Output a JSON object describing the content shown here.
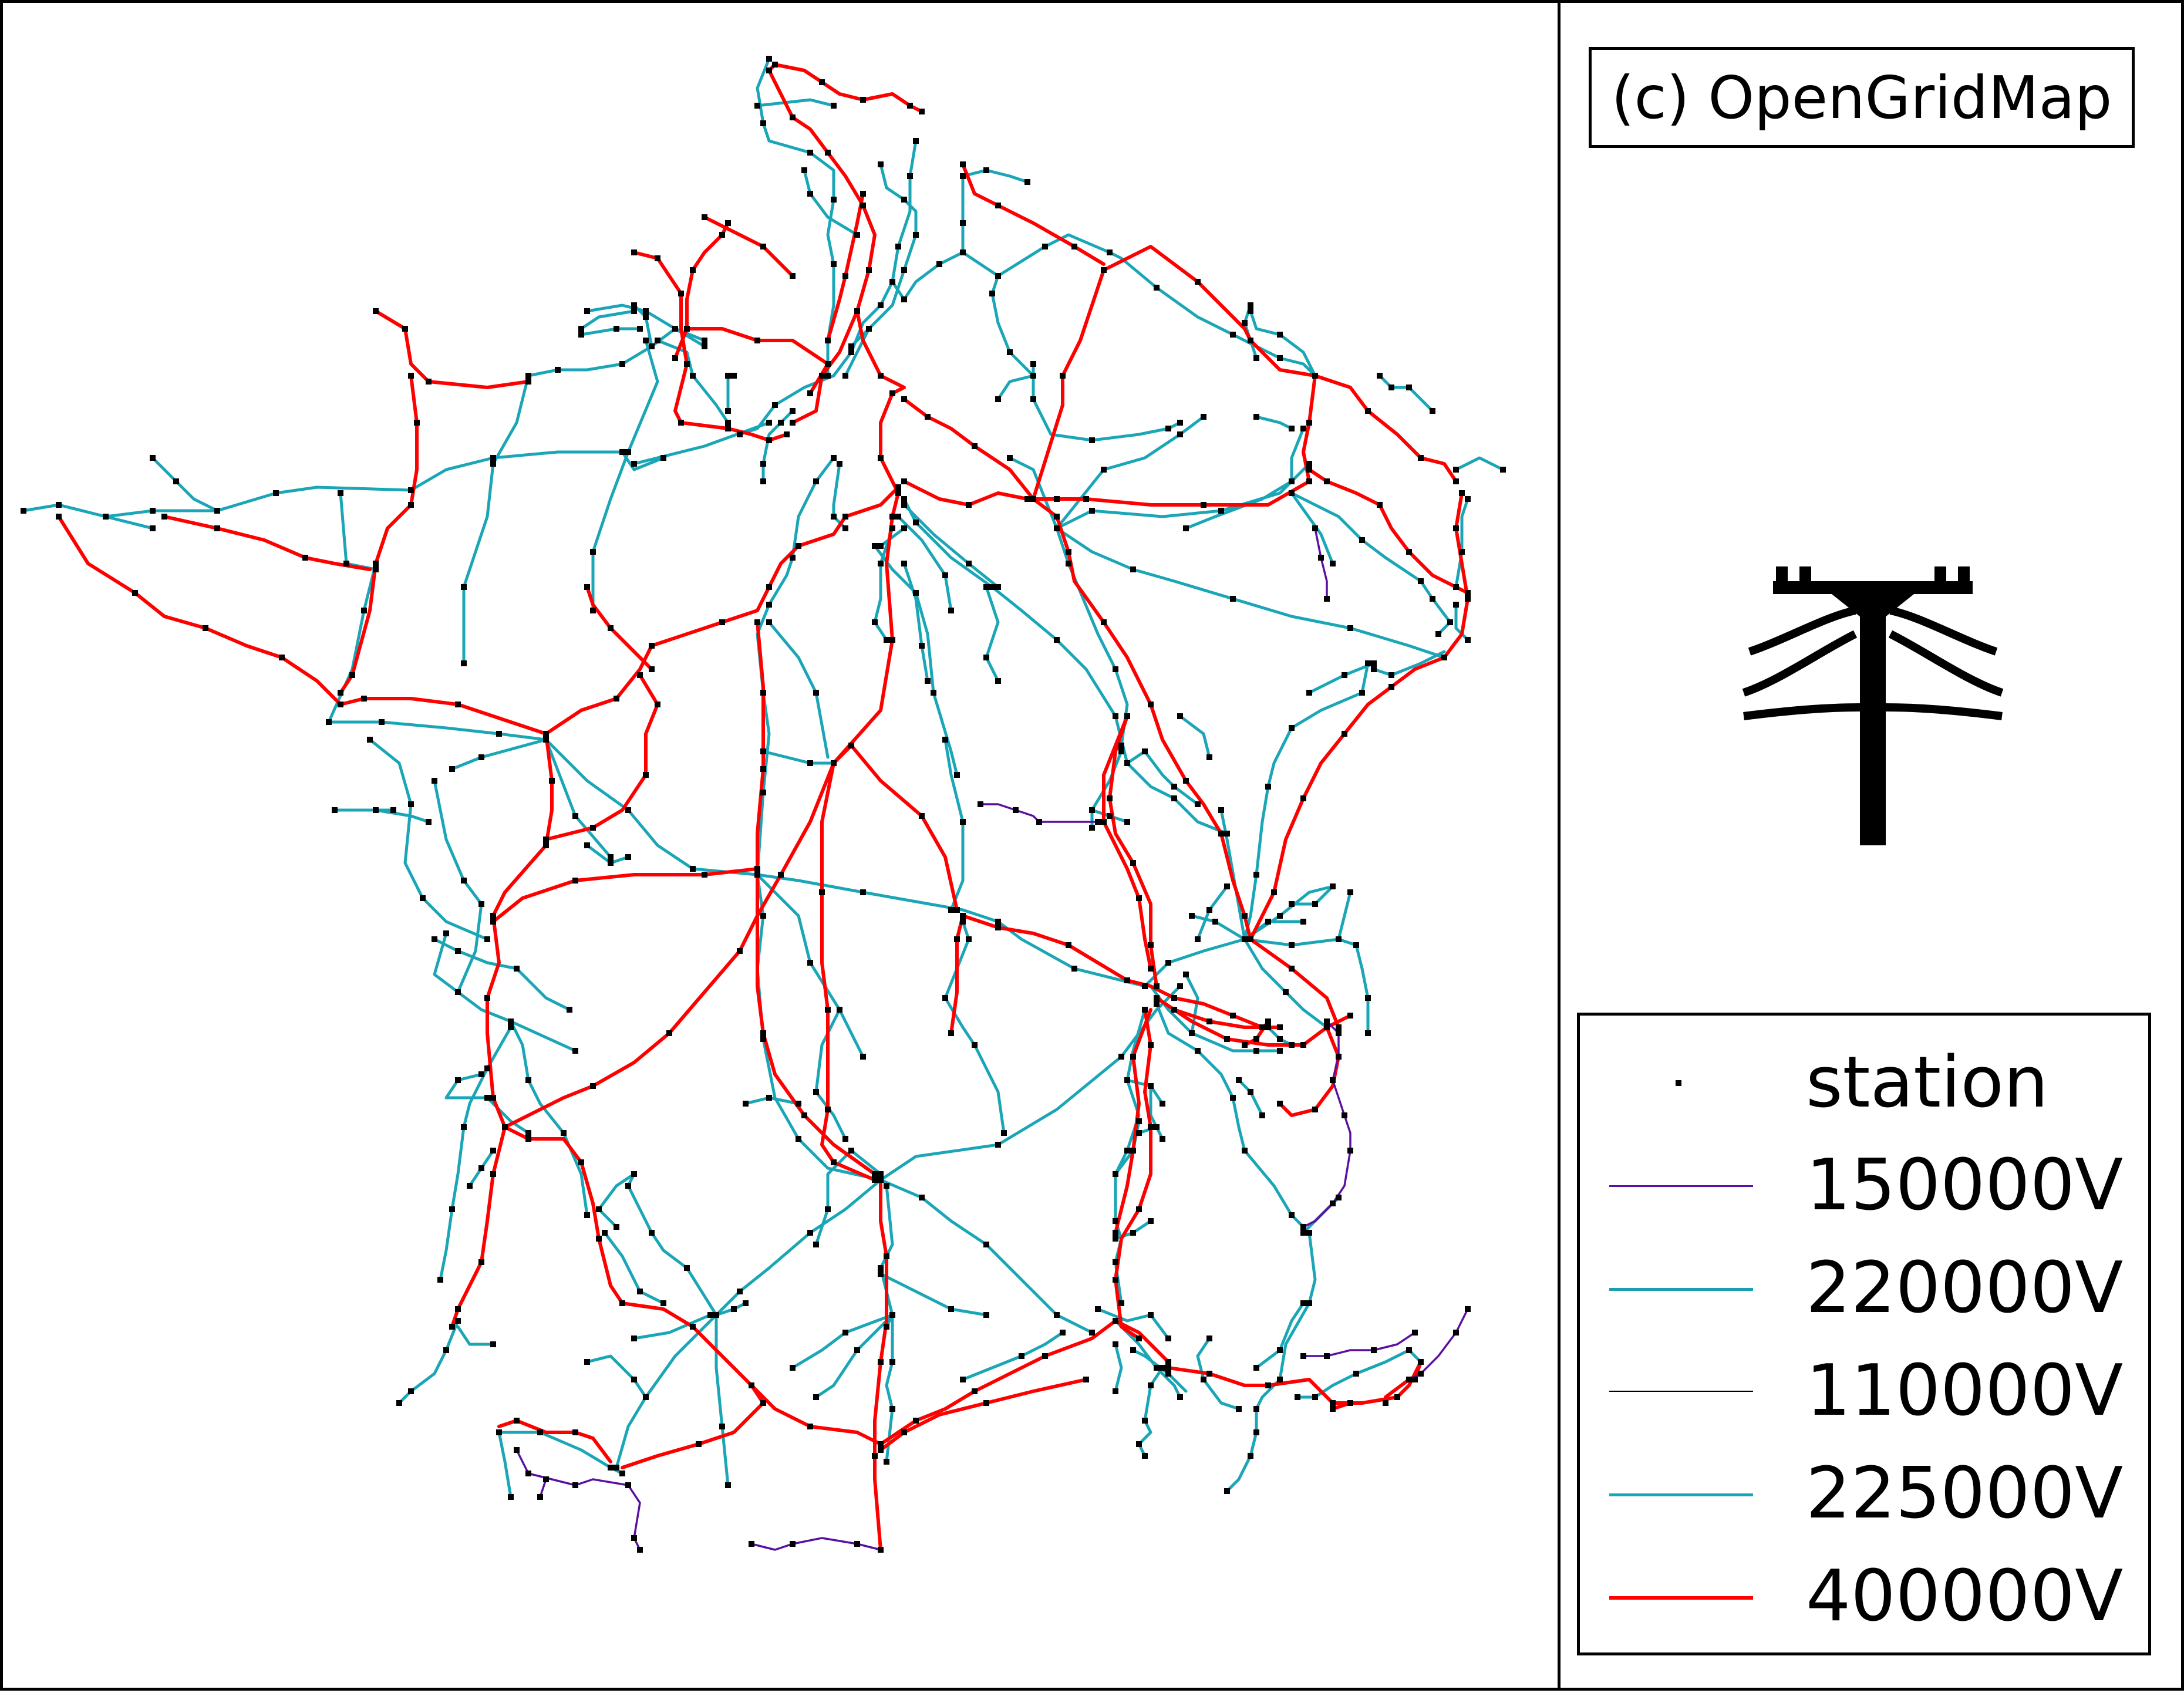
{
  "credit": "(c) OpenGridMap",
  "colors": {
    "line_150kv": "#5a0fa0",
    "line_220kv": "#1a9fb0",
    "line_110kv": "#000000",
    "line_225kv": "#1aa6b7",
    "line_400kv": "#ff0000",
    "station": "#000000"
  },
  "legend": {
    "station": "station",
    "v150": "150000V",
    "v220": "220000V",
    "v110": "110000V",
    "v225": "225000V",
    "v400": "400000V"
  },
  "icons": {
    "logo": "power-tower-icon"
  }
}
